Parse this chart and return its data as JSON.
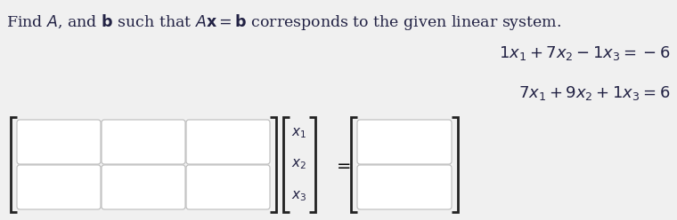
{
  "background_color": "#f0f0f0",
  "title_text": "Find $A$, and $\\mathbf{b}$ such that $A\\mathbf{x} = \\mathbf{b}$ corresponds to the given linear system.",
  "eq1": "$1x_1 + 7x_2 - 1x_3 = -6$",
  "eq2": "$7x_1 + 9x_2 + 1x_3 = 6$",
  "title_fontsize": 12.5,
  "eq_fontsize": 13,
  "box_fill": "#ffffff",
  "box_edge": "#bbbbbb",
  "matrix_x_label": [
    "$x_1$",
    "$x_2$",
    "$x_3$"
  ],
  "bracket_color": "#222222",
  "text_color": "#222244",
  "eq_color": "#222244"
}
